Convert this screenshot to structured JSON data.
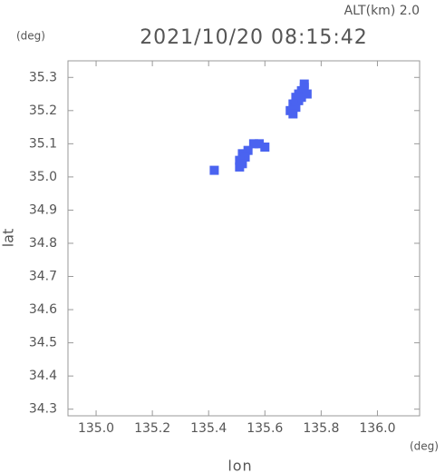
{
  "chart_data": {
    "type": "scatter",
    "title": "2021/10/20 08:15:42",
    "subtitle": "ALT(km) 2.0",
    "y_unit": "(deg)",
    "x_unit": "(deg)",
    "xlabel": "lon",
    "ylabel": "lat",
    "xlim": [
      134.9,
      136.15
    ],
    "ylim": [
      34.28,
      35.35
    ],
    "xticks": [
      {
        "value": 135.0,
        "label": "135.0"
      },
      135.2,
      135.4,
      135.6,
      135.8,
      {
        "value": 136.0,
        "label": "136.0"
      }
    ],
    "yticks": [
      34.3,
      34.4,
      34.5,
      34.6,
      34.7,
      34.8,
      34.9,
      {
        "value": 35.0,
        "label": "35.0"
      },
      35.1,
      35.2,
      35.3
    ],
    "series": [
      {
        "color": "#4a63f0",
        "x": [
          135.74,
          135.73,
          135.72,
          135.71,
          135.72,
          135.73,
          135.7,
          135.71,
          135.69,
          135.7,
          135.74,
          135.75,
          135.56,
          135.58,
          135.6,
          135.54,
          135.52,
          135.53,
          135.51,
          135.52,
          135.51,
          135.42
        ],
        "values": [
          35.28,
          35.26,
          35.25,
          35.24,
          35.23,
          35.24,
          35.22,
          35.21,
          35.2,
          35.19,
          35.27,
          35.25,
          35.1,
          35.1,
          35.09,
          35.08,
          35.07,
          35.06,
          35.05,
          35.04,
          35.03,
          35.02
        ]
      }
    ]
  }
}
